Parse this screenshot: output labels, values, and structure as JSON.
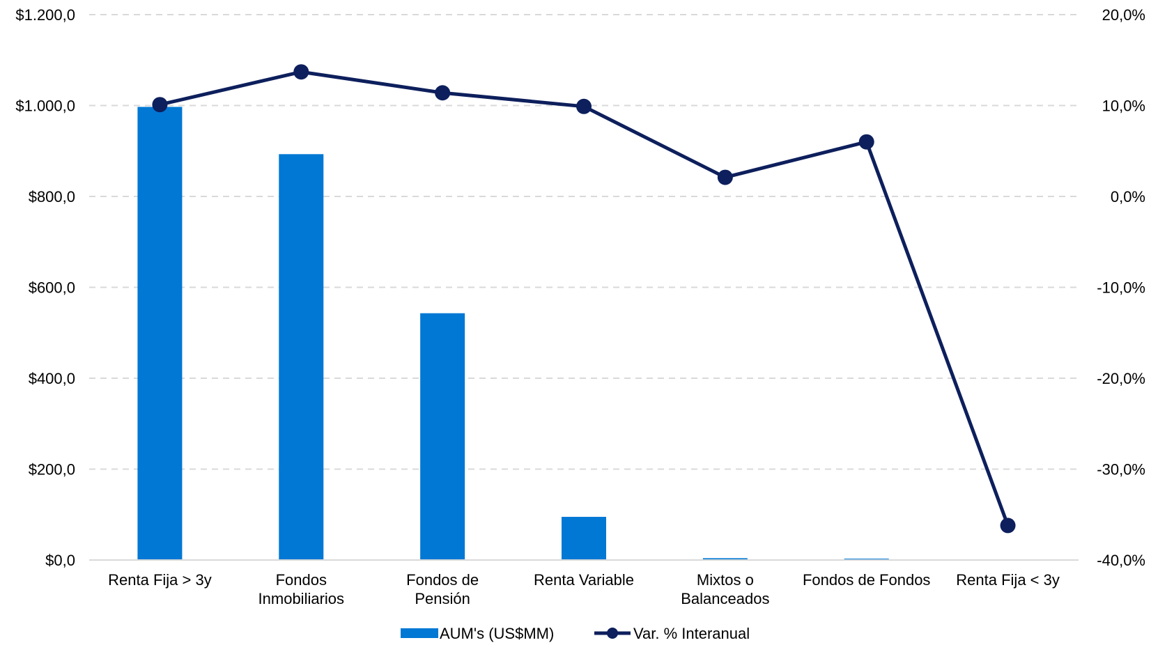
{
  "chart_data": {
    "type": "bar",
    "categories": [
      [
        "Renta Fija > 3y"
      ],
      [
        "Fondos",
        "Inmobiliarios"
      ],
      [
        "Fondos de",
        "Pensión"
      ],
      [
        "Renta Variable"
      ],
      [
        "Mixtos o",
        "Balanceados"
      ],
      [
        "Fondos de Fondos"
      ],
      [
        "Renta Fija < 3y"
      ]
    ],
    "left_axis": {
      "min": 0,
      "max": 1200,
      "step": 200,
      "tick_labels": [
        "$0,0",
        "$200,0",
        "$400,0",
        "$600,0",
        "$800,0",
        "$1.000,0",
        "$1.200,0"
      ]
    },
    "right_axis": {
      "min": -40,
      "max": 20,
      "step": 10,
      "tick_labels": [
        "-40,0%",
        "-30,0%",
        "-20,0%",
        "-10,0%",
        "0,0%",
        "10,0%",
        "20,0%"
      ]
    },
    "series": [
      {
        "name": "AUM's (US$MM)",
        "type": "bar",
        "axis": "left",
        "color": "#0078D4",
        "values": [
          997,
          893,
          543,
          95,
          4,
          3,
          1
        ]
      },
      {
        "name": "Var. % Interanual",
        "type": "line",
        "axis": "right",
        "color": "#0D1F5C",
        "values": [
          10.1,
          13.7,
          11.4,
          9.9,
          2.1,
          6.0,
          -36.2
        ]
      }
    ],
    "grid": true,
    "legend_position": "bottom-center"
  }
}
